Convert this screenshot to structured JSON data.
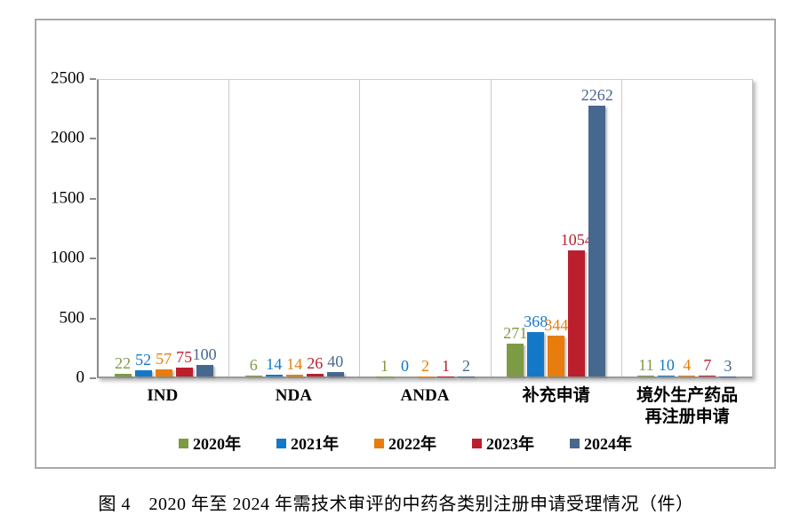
{
  "caption": "图 4　2020 年至 2024 年需技术审评的中药各类别注册申请受理情况（件）",
  "chart_data": {
    "type": "bar",
    "title": "",
    "xlabel": "",
    "ylabel": "",
    "categories": [
      "IND",
      "NDA",
      "ANDA",
      "补充申请",
      "境外生产药品\n再注册申请"
    ],
    "series": [
      {
        "name": "2020年",
        "color": "#7d9b42",
        "values": [
          22,
          6,
          1,
          271,
          11
        ]
      },
      {
        "name": "2021年",
        "color": "#1478c8",
        "values": [
          52,
          14,
          0,
          368,
          10
        ]
      },
      {
        "name": "2022年",
        "color": "#e87d0e",
        "values": [
          57,
          14,
          2,
          344,
          4
        ]
      },
      {
        "name": "2023年",
        "color": "#bb1f2e",
        "values": [
          75,
          26,
          1,
          1054,
          7
        ]
      },
      {
        "name": "2024年",
        "color": "#47688e",
        "values": [
          100,
          40,
          2,
          2262,
          3
        ]
      }
    ],
    "ylim": [
      0,
      2500
    ],
    "yticks": [
      0,
      500,
      1000,
      1500,
      2000,
      2500
    ],
    "grid": "vertical category separators only",
    "legend_position": "bottom",
    "value_labels": "above bars, colored per series"
  }
}
